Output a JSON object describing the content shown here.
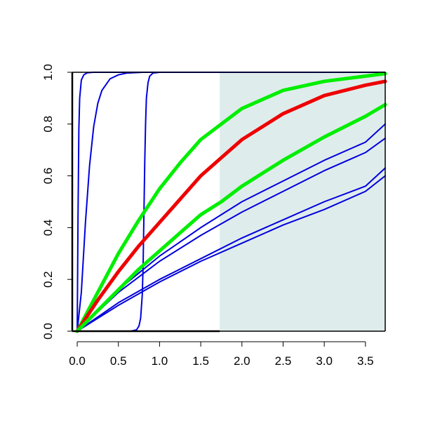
{
  "chart_data": {
    "type": "line",
    "title": "",
    "xlabel": "",
    "ylabel": "",
    "xlim": [
      -0.06,
      3.74
    ],
    "ylim": [
      0.0,
      1.0
    ],
    "grid": false,
    "x_ticks": [
      0.0,
      0.5,
      1.0,
      1.5,
      2.0,
      2.5,
      3.0,
      3.5
    ],
    "x_tick_labels": [
      "0.0",
      "0.5",
      "1.0",
      "1.5",
      "2.0",
      "2.5",
      "3.0",
      "3.5"
    ],
    "y_ticks": [
      0.0,
      0.2,
      0.4,
      0.6,
      0.8,
      1.0
    ],
    "y_tick_labels": [
      "0.0",
      "0.2",
      "0.4",
      "0.6",
      "0.8",
      "1.0"
    ],
    "shaded_region": {
      "x": [
        1.73,
        3.74
      ],
      "y": [
        0.0,
        1.0
      ],
      "color": "#dfecec"
    },
    "colors": {
      "blue": "#0000dd",
      "green": "#00ee00",
      "red": "#ee0000"
    },
    "series": [
      {
        "color": "blue",
        "width": "thin",
        "x": [
          0,
          0.01,
          0.02,
          0.03,
          0.05,
          0.08,
          0.12,
          0.2,
          0.4,
          3.74
        ],
        "y": [
          0,
          0.45,
          0.78,
          0.9,
          0.97,
          0.99,
          0.998,
          1.0,
          1.0,
          1.0
        ]
      },
      {
        "color": "blue",
        "width": "thin",
        "x": [
          0,
          0.05,
          0.1,
          0.15,
          0.2,
          0.25,
          0.3,
          0.4,
          0.5,
          0.6,
          0.8,
          1.0,
          3.74
        ],
        "y": [
          0,
          0.15,
          0.42,
          0.64,
          0.79,
          0.88,
          0.93,
          0.975,
          0.99,
          0.997,
          1.0,
          1.0,
          1.0
        ]
      },
      {
        "color": "blue",
        "width": "thin",
        "x": [
          0,
          0.5,
          0.65,
          0.72,
          0.75,
          0.77,
          0.79,
          0.8,
          0.81,
          0.82,
          0.83,
          0.84,
          0.86,
          0.88,
          0.92,
          1.0,
          3.74
        ],
        "y": [
          0,
          0,
          0.0,
          0.005,
          0.02,
          0.05,
          0.14,
          0.25,
          0.45,
          0.65,
          0.8,
          0.9,
          0.96,
          0.985,
          0.997,
          1.0,
          1.0
        ]
      },
      {
        "color": "blue",
        "width": "thin",
        "x": [
          0,
          0.5,
          1.0,
          1.5,
          2.0,
          2.5,
          3.0,
          3.5,
          3.74
        ],
        "y": [
          0,
          0.16,
          0.29,
          0.4,
          0.5,
          0.58,
          0.66,
          0.73,
          0.8
        ]
      },
      {
        "color": "blue",
        "width": "thin",
        "x": [
          0,
          0.5,
          1.0,
          1.5,
          2.0,
          2.5,
          3.0,
          3.5,
          3.74
        ],
        "y": [
          0,
          0.15,
          0.27,
          0.37,
          0.46,
          0.54,
          0.62,
          0.69,
          0.745
        ]
      },
      {
        "color": "blue",
        "width": "thin",
        "x": [
          0,
          0.5,
          1.0,
          1.5,
          2.0,
          2.5,
          3.0,
          3.5,
          3.74
        ],
        "y": [
          0,
          0.11,
          0.2,
          0.28,
          0.36,
          0.43,
          0.5,
          0.56,
          0.63
        ]
      },
      {
        "color": "blue",
        "width": "thin",
        "x": [
          0,
          0.5,
          1.0,
          1.5,
          2.0,
          2.5,
          3.0,
          3.5,
          3.74
        ],
        "y": [
          0,
          0.1,
          0.19,
          0.27,
          0.34,
          0.41,
          0.47,
          0.54,
          0.6
        ]
      },
      {
        "color": "green",
        "width": "thick",
        "x": [
          0,
          0.25,
          0.5,
          0.75,
          1.0,
          1.25,
          1.5,
          1.75,
          2.0,
          2.5,
          3.0,
          3.5,
          3.74
        ],
        "y": [
          0,
          0.15,
          0.3,
          0.43,
          0.55,
          0.65,
          0.74,
          0.8,
          0.86,
          0.93,
          0.965,
          0.985,
          0.995
        ]
      },
      {
        "color": "red",
        "width": "thick",
        "x": [
          0,
          0.25,
          0.5,
          0.75,
          1.0,
          1.25,
          1.5,
          1.75,
          2.0,
          2.5,
          3.0,
          3.5,
          3.74
        ],
        "y": [
          0,
          0.12,
          0.23,
          0.33,
          0.42,
          0.51,
          0.6,
          0.67,
          0.74,
          0.84,
          0.91,
          0.95,
          0.965
        ]
      },
      {
        "color": "green",
        "width": "thick",
        "x": [
          0,
          0.25,
          0.5,
          0.75,
          1.0,
          1.25,
          1.5,
          1.75,
          2.0,
          2.5,
          3.0,
          3.5,
          3.74
        ],
        "y": [
          0,
          0.08,
          0.16,
          0.24,
          0.31,
          0.38,
          0.45,
          0.5,
          0.56,
          0.66,
          0.75,
          0.83,
          0.875
        ]
      }
    ]
  }
}
